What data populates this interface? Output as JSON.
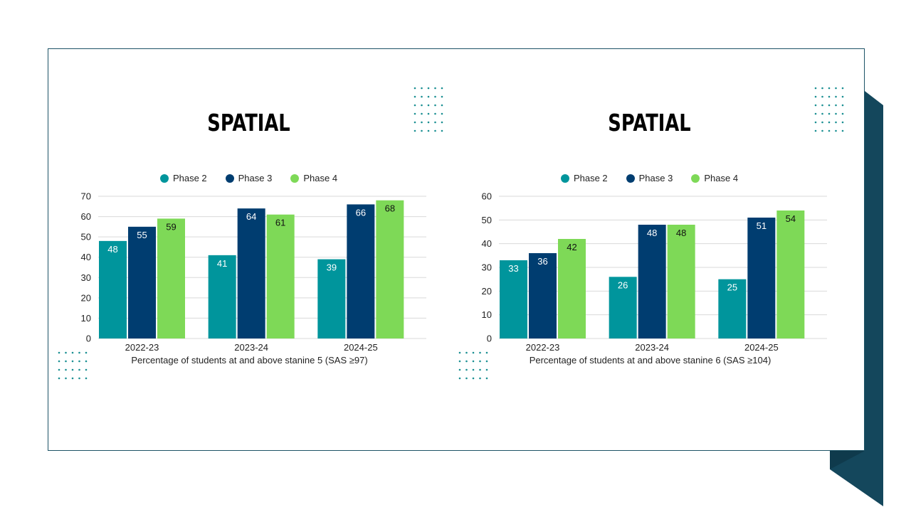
{
  "colors": {
    "frame": "#1d5366",
    "dark_band": "#14475c",
    "band_shadow": "#0f3a4c",
    "dots": "#1a8f92",
    "grid": "#d9d9d9"
  },
  "series_colors": [
    "#00959c",
    "#003d70",
    "#7ed957"
  ],
  "chart_data": [
    {
      "type": "bar",
      "title": "SPATIAL",
      "categories": [
        "2022-23",
        "2023-24",
        "2024-25"
      ],
      "series": [
        {
          "name": "Phase 2",
          "values": [
            48,
            41,
            39
          ]
        },
        {
          "name": "Phase 3",
          "values": [
            55,
            64,
            66
          ]
        },
        {
          "name": "Phase 4",
          "values": [
            59,
            61,
            68
          ]
        }
      ],
      "xlabel": "Percentage of students at and above stanine 5 (SAS ≥97)",
      "ylabel": "",
      "ylim": [
        0,
        70
      ],
      "yticks": [
        0,
        10,
        20,
        30,
        40,
        50,
        60,
        70
      ],
      "grid": true,
      "legend": "top"
    },
    {
      "type": "bar",
      "title": "SPATIAL",
      "categories": [
        "2022-23",
        "2023-24",
        "2024-25"
      ],
      "series": [
        {
          "name": "Phase 2",
          "values": [
            33,
            26,
            25
          ]
        },
        {
          "name": "Phase 3",
          "values": [
            36,
            48,
            51
          ]
        },
        {
          "name": "Phase 4",
          "values": [
            42,
            48,
            54
          ]
        }
      ],
      "xlabel": "Percentage of students at and above stanine 6 (SAS ≥104)",
      "ylabel": "",
      "ylim": [
        0,
        60
      ],
      "yticks": [
        0,
        10,
        20,
        30,
        40,
        50,
        60
      ],
      "grid": true,
      "legend": "top"
    }
  ]
}
